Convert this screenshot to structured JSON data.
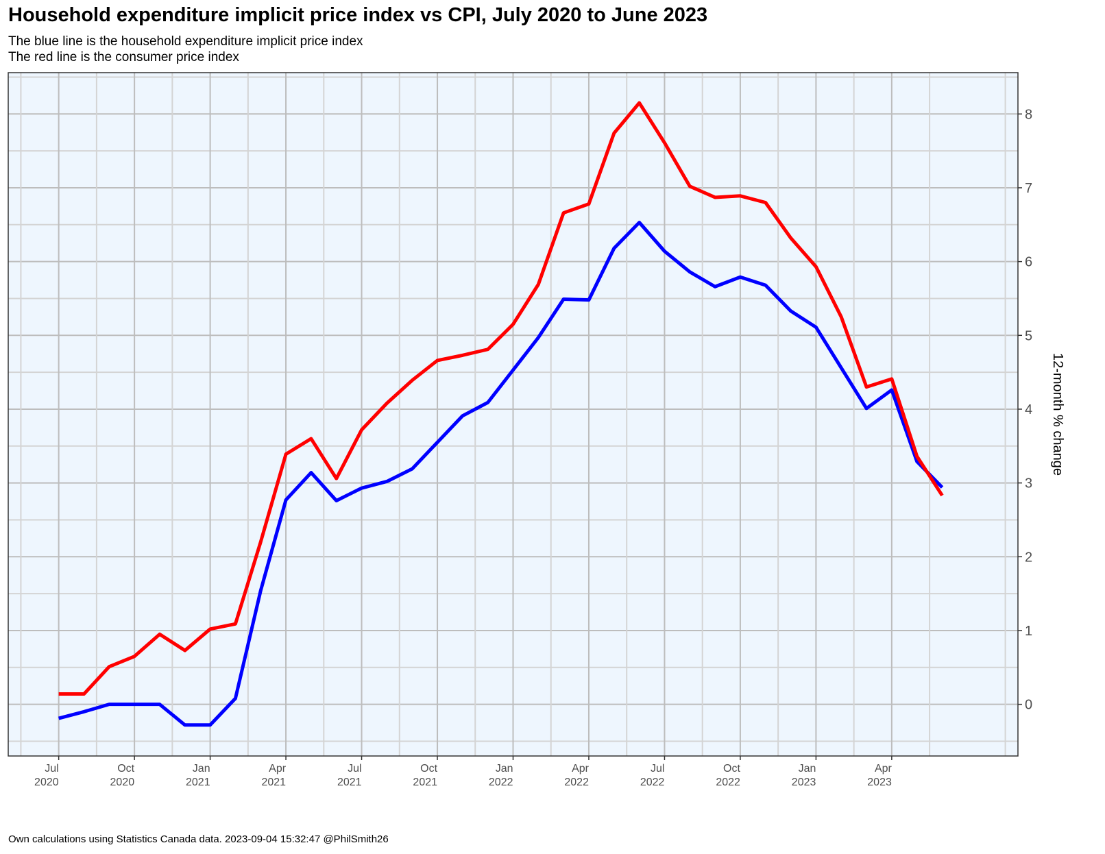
{
  "chart_data": {
    "type": "line",
    "title": "Household expenditure implicit price index vs CPI, July 2020 to June 2023",
    "subtitle": [
      "The blue line is the household expenditure implicit price index",
      "The red line is the consumer price index"
    ],
    "caption": "Own calculations using Statistics Canada data. 2023-09-04 15:32:47 @PhilSmith26",
    "xlabel": "",
    "ylabel": "12-month % change",
    "y_axis_position": "right",
    "ylim": [
      -0.7,
      8.56
    ],
    "xlim": [
      "2020-05",
      "2023-09"
    ],
    "yticks": [
      0,
      1,
      2,
      3,
      4,
      5,
      6,
      7,
      8
    ],
    "xticks": [
      {
        "month": "2020-07",
        "label": [
          "Jul",
          "2020"
        ]
      },
      {
        "month": "2020-10",
        "label": [
          "Oct",
          "2020"
        ]
      },
      {
        "month": "2021-01",
        "label": [
          "Jan",
          "2021"
        ]
      },
      {
        "month": "2021-04",
        "label": [
          "Apr",
          "2021"
        ]
      },
      {
        "month": "2021-07",
        "label": [
          "Jul",
          "2021"
        ]
      },
      {
        "month": "2021-10",
        "label": [
          "Oct",
          "2021"
        ]
      },
      {
        "month": "2022-01",
        "label": [
          "Jan",
          "2022"
        ]
      },
      {
        "month": "2022-04",
        "label": [
          "Apr",
          "2022"
        ]
      },
      {
        "month": "2022-07",
        "label": [
          "Jul",
          "2022"
        ]
      },
      {
        "month": "2022-10",
        "label": [
          "Oct",
          "2022"
        ]
      },
      {
        "month": "2023-01",
        "label": [
          "Jan",
          "2023"
        ]
      },
      {
        "month": "2023-04",
        "label": [
          "Apr",
          "2023"
        ]
      }
    ],
    "grid": true,
    "legend": "none",
    "background": "#eef6fe",
    "x": [
      "2020-07",
      "2020-08",
      "2020-09",
      "2020-10",
      "2020-11",
      "2020-12",
      "2021-01",
      "2021-02",
      "2021-03",
      "2021-04",
      "2021-05",
      "2021-06",
      "2021-07",
      "2021-08",
      "2021-09",
      "2021-10",
      "2021-11",
      "2021-12",
      "2022-01",
      "2022-02",
      "2022-03",
      "2022-04",
      "2022-05",
      "2022-06",
      "2022-07",
      "2022-08",
      "2022-09",
      "2022-10",
      "2022-11",
      "2022-12",
      "2023-01",
      "2023-02",
      "2023-03",
      "2023-04",
      "2023-05",
      "2023-06"
    ],
    "series": [
      {
        "color": "#0000ff",
        "values": [
          -0.19,
          -0.1,
          0.0,
          0.0,
          0.0,
          -0.28,
          -0.28,
          0.08,
          1.54,
          2.77,
          3.14,
          2.76,
          2.93,
          3.02,
          3.19,
          3.55,
          3.91,
          4.09,
          4.53,
          4.97,
          5.49,
          5.48,
          6.18,
          6.53,
          6.14,
          5.86,
          5.66,
          5.79,
          5.68,
          5.33,
          5.11,
          4.56,
          4.01,
          4.26,
          3.29,
          2.94
        ]
      },
      {
        "color": "#ff0000",
        "values": [
          0.14,
          0.14,
          0.51,
          0.65,
          0.95,
          0.73,
          1.02,
          1.09,
          2.2,
          3.39,
          3.6,
          3.06,
          3.72,
          4.08,
          4.39,
          4.66,
          4.73,
          4.81,
          5.15,
          5.69,
          6.66,
          6.78,
          7.74,
          8.15,
          7.61,
          7.02,
          6.87,
          6.89,
          6.8,
          6.32,
          5.93,
          5.25,
          4.3,
          4.41,
          3.36,
          2.83
        ]
      }
    ]
  }
}
